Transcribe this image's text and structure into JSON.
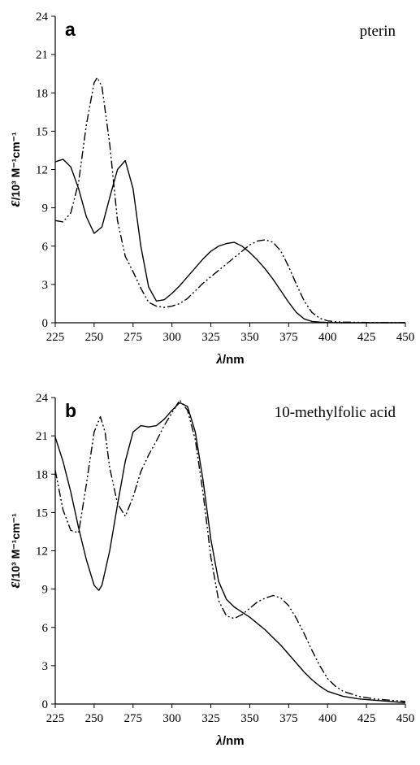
{
  "chart_data": [
    {
      "type": "line",
      "panel_label": "a",
      "annotation": "pterin",
      "xlabel_symbol": "λ",
      "xlabel_unit": "/nm",
      "ylabel_symbol": "ε",
      "ylabel_unit": "/10³ M⁻¹cm⁻¹",
      "xlim": [
        225,
        450
      ],
      "ylim": [
        0,
        24
      ],
      "xticks": [
        225,
        250,
        275,
        300,
        325,
        350,
        375,
        400,
        425,
        450
      ],
      "yticks": [
        0,
        3,
        6,
        9,
        12,
        15,
        18,
        21,
        24
      ],
      "grid": false,
      "series": [
        {
          "style": "solid",
          "x": [
            225,
            230,
            235,
            240,
            245,
            250,
            255,
            260,
            265,
            270,
            275,
            280,
            285,
            290,
            295,
            300,
            305,
            310,
            315,
            320,
            325,
            330,
            335,
            340,
            345,
            350,
            355,
            360,
            365,
            370,
            375,
            380,
            385,
            390,
            395,
            400,
            410,
            425,
            450
          ],
          "y": [
            12.6,
            12.8,
            12.2,
            10.5,
            8.3,
            7.0,
            7.5,
            9.8,
            12.0,
            12.7,
            10.5,
            6.0,
            2.8,
            1.7,
            1.8,
            2.3,
            2.9,
            3.6,
            4.3,
            5.0,
            5.6,
            6.0,
            6.2,
            6.3,
            6.0,
            5.5,
            4.9,
            4.2,
            3.4,
            2.5,
            1.6,
            0.8,
            0.3,
            0.1,
            0.05,
            0.02,
            0,
            0,
            0
          ]
        },
        {
          "style": "dash-dot-dot",
          "x": [
            225,
            230,
            235,
            240,
            245,
            250,
            252,
            255,
            260,
            265,
            270,
            275,
            280,
            285,
            290,
            295,
            300,
            305,
            310,
            315,
            320,
            325,
            330,
            335,
            340,
            345,
            350,
            355,
            360,
            365,
            370,
            375,
            380,
            385,
            390,
            395,
            400,
            405,
            410,
            415,
            420,
            425,
            450
          ],
          "y": [
            8.0,
            7.9,
            8.6,
            11.0,
            15.5,
            18.8,
            19.2,
            18.5,
            14.0,
            8.0,
            5.2,
            4.0,
            2.7,
            1.6,
            1.3,
            1.2,
            1.3,
            1.5,
            1.9,
            2.5,
            3.1,
            3.6,
            4.1,
            4.6,
            5.1,
            5.6,
            6.1,
            6.4,
            6.5,
            6.3,
            5.6,
            4.4,
            3.0,
            1.7,
            0.8,
            0.35,
            0.15,
            0.08,
            0.05,
            0.04,
            0.03,
            0.02,
            0
          ]
        }
      ]
    },
    {
      "type": "line",
      "panel_label": "b",
      "annotation": "10-methylfolic acid",
      "xlabel_symbol": "λ",
      "xlabel_unit": "/nm",
      "ylabel_symbol": "ε",
      "ylabel_unit": "/10³ M⁻¹cm⁻¹",
      "xlim": [
        225,
        450
      ],
      "ylim": [
        0,
        24
      ],
      "xticks": [
        225,
        250,
        275,
        300,
        325,
        350,
        375,
        400,
        425,
        450
      ],
      "yticks": [
        0,
        3,
        6,
        9,
        12,
        15,
        18,
        21,
        24
      ],
      "grid": false,
      "series": [
        {
          "style": "solid",
          "x": [
            225,
            230,
            235,
            240,
            245,
            250,
            253,
            255,
            260,
            265,
            270,
            275,
            280,
            285,
            290,
            295,
            300,
            305,
            310,
            315,
            320,
            325,
            330,
            335,
            340,
            345,
            350,
            355,
            360,
            365,
            370,
            375,
            380,
            385,
            390,
            395,
            400,
            410,
            420,
            430,
            440,
            450
          ],
          "y": [
            20.9,
            19.0,
            16.6,
            13.8,
            11.3,
            9.3,
            8.9,
            9.3,
            12.0,
            15.6,
            19.0,
            21.3,
            21.8,
            21.7,
            21.8,
            22.3,
            23.0,
            23.6,
            23.3,
            21.3,
            17.5,
            12.9,
            9.6,
            8.2,
            7.6,
            7.2,
            6.8,
            6.3,
            5.8,
            5.2,
            4.6,
            3.9,
            3.2,
            2.5,
            1.9,
            1.4,
            1.0,
            0.6,
            0.4,
            0.3,
            0.2,
            0.1
          ]
        },
        {
          "style": "dash-dot-dot",
          "x": [
            225,
            230,
            235,
            240,
            245,
            250,
            254,
            257,
            260,
            265,
            270,
            275,
            280,
            285,
            290,
            295,
            300,
            305,
            310,
            315,
            320,
            325,
            330,
            335,
            340,
            345,
            350,
            355,
            360,
            365,
            370,
            375,
            380,
            385,
            390,
            395,
            400,
            405,
            410,
            415,
            420,
            430,
            440,
            450
          ],
          "y": [
            18.3,
            15.2,
            13.6,
            13.4,
            17.2,
            21.3,
            22.5,
            21.3,
            18.5,
            15.7,
            14.7,
            16.2,
            18.2,
            19.5,
            20.6,
            21.8,
            22.8,
            23.8,
            23.0,
            20.7,
            16.5,
            11.5,
            8.1,
            6.9,
            6.7,
            7.0,
            7.5,
            8.0,
            8.3,
            8.5,
            8.3,
            7.7,
            6.7,
            5.5,
            4.2,
            3.0,
            2.0,
            1.4,
            1.0,
            0.8,
            0.6,
            0.4,
            0.3,
            0.2
          ]
        }
      ]
    }
  ]
}
